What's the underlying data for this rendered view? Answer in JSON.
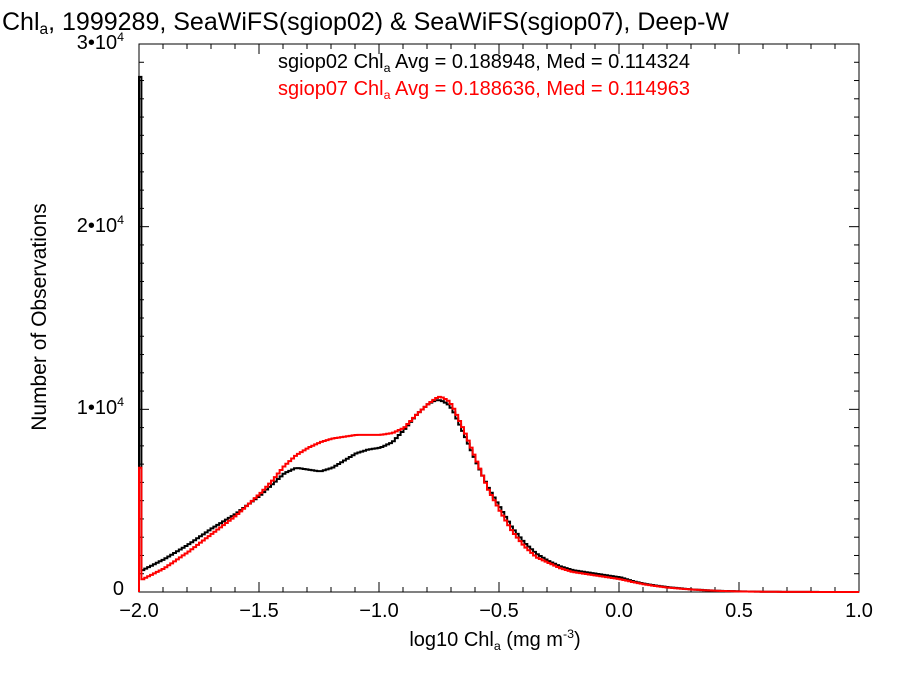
{
  "chart_data": {
    "type": "line",
    "title": {
      "pre": "Chl",
      "sub": "a",
      "post": ", 1999289, SeaWiFS(sgiop02) & SeaWiFS(sgiop07), Deep-W"
    },
    "xlabel": {
      "pre": "log10 Chl",
      "sub": "a",
      "mid": " (mg m",
      "sup": "-3",
      "post": ")"
    },
    "ylabel": "Number of Observations",
    "xlim": [
      -2.0,
      1.0
    ],
    "ylim": [
      0,
      30000
    ],
    "xticks": [
      {
        "value": -2.0,
        "label": "−2.0"
      },
      {
        "value": -1.5,
        "label": "−1.5"
      },
      {
        "value": -1.0,
        "label": "−1.0"
      },
      {
        "value": -0.5,
        "label": "−0.5"
      },
      {
        "value": 0.0,
        "label": "0.0"
      },
      {
        "value": 0.5,
        "label": "0.5"
      },
      {
        "value": 1.0,
        "label": "1.0"
      }
    ],
    "yticks": [
      {
        "value": 0,
        "base": "0",
        "exp": ""
      },
      {
        "value": 10000,
        "base": "1•10",
        "exp": "4"
      },
      {
        "value": 20000,
        "base": "2•10",
        "exp": "4"
      },
      {
        "value": 30000,
        "base": "3•10",
        "exp": "4"
      }
    ],
    "legend": {
      "placement": "top",
      "entries": [
        {
          "series": "sgiop02",
          "pre": "sgiop02 Chl",
          "sub": "a",
          "post": " Avg = 0.188948, Med = 0.114324"
        },
        {
          "series": "sgiop07",
          "pre": "sgiop07 Chl",
          "sub": "a",
          "post": " Avg = 0.188636, Med = 0.114963"
        }
      ]
    },
    "series": [
      {
        "name": "sgiop02",
        "color": "#000000",
        "spike": {
          "x": -2.0,
          "y": 28200
        },
        "x": [
          -1.99,
          -1.9,
          -1.8,
          -1.7,
          -1.6,
          -1.5,
          -1.45,
          -1.4,
          -1.35,
          -1.3,
          -1.25,
          -1.2,
          -1.15,
          -1.1,
          -1.05,
          -1.0,
          -0.95,
          -0.9,
          -0.85,
          -0.8,
          -0.77,
          -0.75,
          -0.72,
          -0.7,
          -0.65,
          -0.6,
          -0.55,
          -0.5,
          -0.45,
          -0.4,
          -0.35,
          -0.3,
          -0.25,
          -0.2,
          -0.15,
          -0.1,
          -0.05,
          0.0,
          0.05,
          0.1,
          0.15,
          0.2,
          0.3,
          0.4,
          0.5,
          0.6,
          0.7,
          0.8,
          0.9,
          1.0
        ],
        "y": [
          1200,
          1800,
          2600,
          3500,
          4300,
          5300,
          5900,
          6500,
          6800,
          6700,
          6600,
          6800,
          7200,
          7600,
          7800,
          7900,
          8200,
          8900,
          9700,
          10300,
          10500,
          10500,
          10300,
          10000,
          8600,
          7100,
          5700,
          4600,
          3500,
          2700,
          2100,
          1700,
          1400,
          1200,
          1100,
          1000,
          900,
          800,
          600,
          450,
          350,
          260,
          140,
          70,
          35,
          15,
          8,
          4,
          2,
          0
        ]
      },
      {
        "name": "sgiop07",
        "color": "#ff0000",
        "spike": {
          "x": -2.0,
          "y": 6800
        },
        "x": [
          -1.99,
          -1.9,
          -1.8,
          -1.7,
          -1.6,
          -1.5,
          -1.45,
          -1.4,
          -1.35,
          -1.3,
          -1.25,
          -1.2,
          -1.15,
          -1.1,
          -1.05,
          -1.0,
          -0.95,
          -0.9,
          -0.85,
          -0.8,
          -0.77,
          -0.75,
          -0.72,
          -0.7,
          -0.65,
          -0.6,
          -0.55,
          -0.5,
          -0.45,
          -0.4,
          -0.35,
          -0.3,
          -0.25,
          -0.2,
          -0.15,
          -0.1,
          -0.05,
          0.0,
          0.05,
          0.1,
          0.15,
          0.2,
          0.3,
          0.4,
          0.5,
          0.6,
          0.7,
          0.8,
          0.9,
          1.0
        ],
        "y": [
          700,
          1300,
          2200,
          3200,
          4200,
          5400,
          6100,
          6900,
          7500,
          7900,
          8200,
          8400,
          8500,
          8600,
          8600,
          8600,
          8700,
          9000,
          9700,
          10300,
          10600,
          10700,
          10500,
          10200,
          8800,
          7200,
          5600,
          4400,
          3300,
          2500,
          1900,
          1600,
          1300,
          1100,
          1000,
          900,
          800,
          700,
          550,
          420,
          320,
          240,
          130,
          65,
          30,
          14,
          7,
          3,
          1,
          0
        ]
      }
    ]
  }
}
